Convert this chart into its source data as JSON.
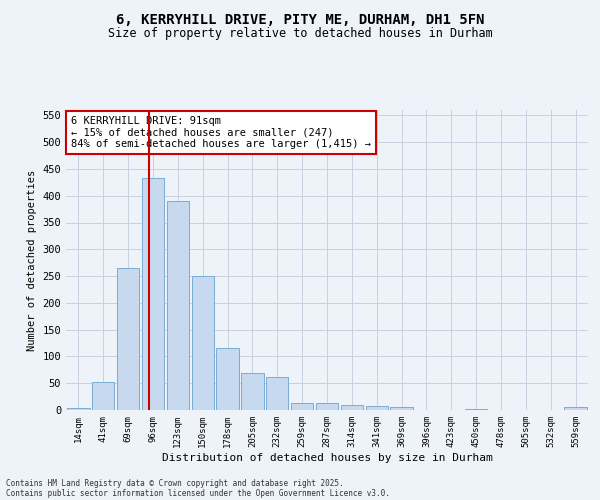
{
  "title": "6, KERRYHILL DRIVE, PITY ME, DURHAM, DH1 5FN",
  "subtitle": "Size of property relative to detached houses in Durham",
  "xlabel": "Distribution of detached houses by size in Durham",
  "ylabel": "Number of detached properties",
  "bar_color": "#c6d9ee",
  "bar_edge_color": "#7aadd4",
  "background_color": "#eef2f9",
  "grid_color": "#c8cfe0",
  "categories": [
    "14sqm",
    "41sqm",
    "69sqm",
    "96sqm",
    "123sqm",
    "150sqm",
    "178sqm",
    "205sqm",
    "232sqm",
    "259sqm",
    "287sqm",
    "314sqm",
    "341sqm",
    "369sqm",
    "396sqm",
    "423sqm",
    "450sqm",
    "478sqm",
    "505sqm",
    "532sqm",
    "559sqm"
  ],
  "values": [
    3,
    52,
    265,
    433,
    390,
    250,
    116,
    70,
    62,
    14,
    14,
    10,
    7,
    5,
    0,
    0,
    2,
    0,
    0,
    0,
    5
  ],
  "vline_x": 2.85,
  "vline_color": "#cc0000",
  "annotation_text": "6 KERRYHILL DRIVE: 91sqm\n← 15% of detached houses are smaller (247)\n84% of semi-detached houses are larger (1,415) →",
  "annotation_box_color": "#ffffff",
  "annotation_box_edge": "#cc0000",
  "ylim": [
    0,
    560
  ],
  "yticks": [
    0,
    50,
    100,
    150,
    200,
    250,
    300,
    350,
    400,
    450,
    500,
    550
  ],
  "footer1": "Contains HM Land Registry data © Crown copyright and database right 2025.",
  "footer2": "Contains public sector information licensed under the Open Government Licence v3.0."
}
